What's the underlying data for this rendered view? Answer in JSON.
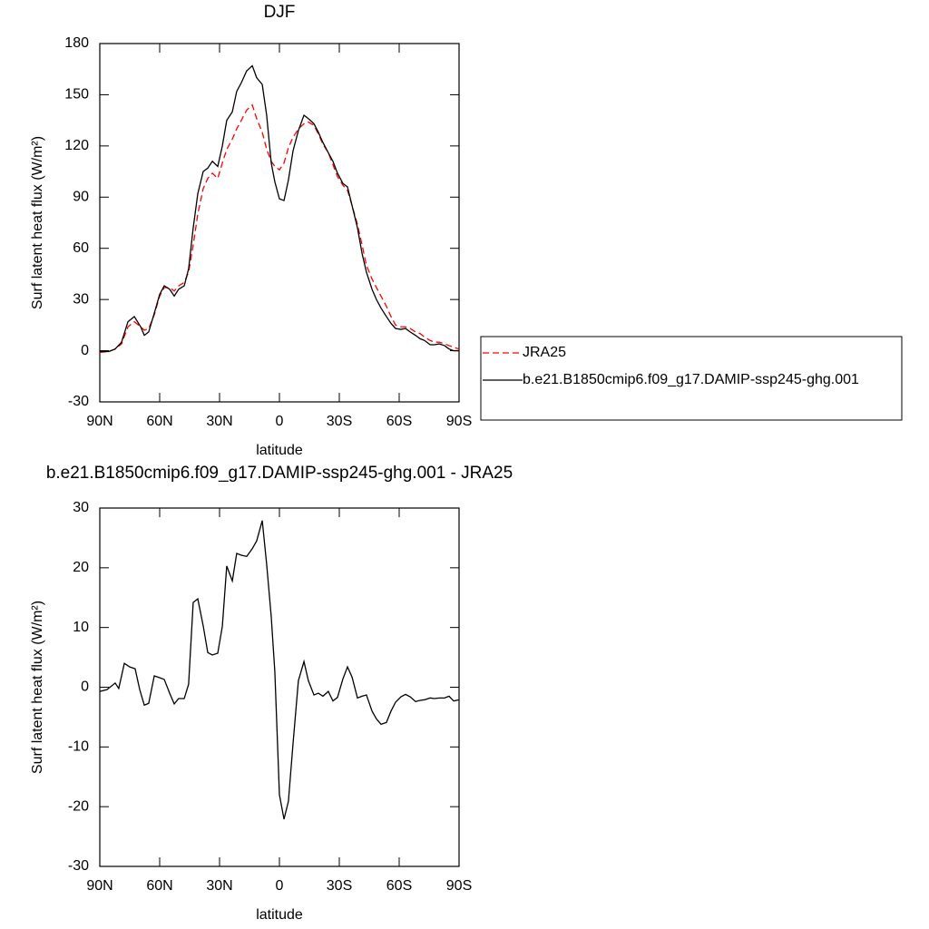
{
  "chart_data": [
    {
      "type": "line",
      "title": "DJF",
      "xlabel": "latitude",
      "ylabel": "Surf latent heat flux (W/m²)",
      "x": [
        90,
        85.5,
        82.3,
        79.1,
        75.9,
        72.7,
        69.5,
        67.7,
        65.5,
        62.7,
        60,
        57.7,
        55,
        52.7,
        50.5,
        47.7,
        45.5,
        43.2,
        40.9,
        38.2,
        35.9,
        33.6,
        30.9,
        28.6,
        26.4,
        23.6,
        21.4,
        19.1,
        16.4,
        13.6,
        11.4,
        8.6,
        6.4,
        4.1,
        2.3,
        0,
        -2.3,
        -4.5,
        -6.8,
        -9.5,
        -12.3,
        -14.5,
        -17.3,
        -19.5,
        -21.8,
        -24.5,
        -26.8,
        -29.1,
        -31.8,
        -34.1,
        -36.4,
        -39.1,
        -41.4,
        -43.6,
        -46.4,
        -48.6,
        -50.9,
        -53.6,
        -55.9,
        -58.2,
        -60.9,
        -63.2,
        -65.5,
        -68.2,
        -70.5,
        -72.7,
        -75.5,
        -77.7,
        -80,
        -82.7,
        -85,
        -87.3,
        -90
      ],
      "xlim": [
        90,
        -90
      ],
      "xticks": [
        {
          "value": 90,
          "label": "90N"
        },
        {
          "value": 60,
          "label": "60N"
        },
        {
          "value": 30,
          "label": "30N"
        },
        0,
        {
          "value": -30,
          "label": "30S"
        },
        {
          "value": -60,
          "label": "60S"
        },
        {
          "value": -90,
          "label": "90S"
        }
      ],
      "ylim": [
        -30,
        180
      ],
      "yticks": [
        -30,
        0,
        30,
        60,
        90,
        120,
        150,
        180
      ],
      "series": [
        {
          "name": "JRA25",
          "color": "#ff0000",
          "dash": "dashed",
          "values": [
            -1,
            -0.5,
            1,
            4,
            14,
            17,
            14,
            12,
            13,
            21,
            32,
            37,
            37,
            35,
            38,
            40,
            46,
            62,
            80,
            95,
            101,
            104,
            101,
            110,
            118,
            124,
            130,
            135,
            141,
            144,
            136,
            128,
            118,
            111,
            108,
            106,
            110,
            119,
            125,
            130,
            133,
            134,
            132,
            127,
            121,
            116,
            109,
            102,
            97,
            94,
            85,
            74,
            62,
            50,
            42,
            37,
            32,
            26,
            20,
            15,
            14,
            14,
            13,
            11,
            10,
            8,
            6,
            5,
            5,
            4,
            3,
            2,
            1
          ]
        },
        {
          "name": "b.e21.B1850cmip6.f09_g17.DAMIP-ssp245-ghg.001",
          "color": "#000000",
          "values": [
            -0.5,
            -0.5,
            1,
            5,
            17,
            20,
            14,
            9,
            11,
            22,
            33,
            38,
            36,
            32,
            36,
            38,
            48,
            72,
            92,
            105,
            107,
            111,
            108,
            120,
            135,
            140,
            152,
            157,
            164,
            167,
            160,
            156,
            138,
            110,
            99,
            89,
            88,
            100,
            117,
            129,
            138,
            136,
            133,
            128,
            122,
            116,
            111,
            104,
            98,
            96,
            85,
            72,
            57,
            46,
            36,
            30,
            25,
            20,
            16,
            13,
            12.5,
            13,
            11,
            9,
            7,
            6,
            3.5,
            3.5,
            4,
            3,
            1,
            0,
            0
          ]
        }
      ]
    },
    {
      "type": "line",
      "title": "b.e21.B1850cmip6.f09_g17.DAMIP-ssp245-ghg.001 - JRA25",
      "xlabel": "latitude",
      "ylabel": "Surf latent heat flux (W/m²)",
      "x": [
        90,
        86.4,
        82.3,
        80.5,
        77.7,
        75,
        72.3,
        70,
        67.7,
        65.5,
        62.7,
        60,
        57.7,
        55,
        52.7,
        50.5,
        47.7,
        45.5,
        43.2,
        40.9,
        38.2,
        35.9,
        33.6,
        30.9,
        28.6,
        26.4,
        23.6,
        21.4,
        19.1,
        16.4,
        13.6,
        11.4,
        8.6,
        6.4,
        4.1,
        2.3,
        0,
        -2.3,
        -4.5,
        -6.8,
        -9.5,
        -12.3,
        -14.5,
        -17.3,
        -19.5,
        -21.8,
        -24.5,
        -26.8,
        -29.1,
        -31.8,
        -34.1,
        -36.4,
        -39.1,
        -41.4,
        -43.6,
        -46.4,
        -48.6,
        -50.9,
        -53.6,
        -55.9,
        -58.2,
        -60.9,
        -63.2,
        -65.5,
        -68.2,
        -70.5,
        -72.7,
        -75.5,
        -77.7,
        -80,
        -82.7,
        -85,
        -87.3,
        -90
      ],
      "xlim": [
        90,
        -90
      ],
      "xticks": [
        {
          "value": 90,
          "label": "90N"
        },
        {
          "value": 60,
          "label": "60N"
        },
        {
          "value": 30,
          "label": "30N"
        },
        0,
        {
          "value": -30,
          "label": "30S"
        },
        {
          "value": -60,
          "label": "60S"
        },
        {
          "value": -90,
          "label": "90S"
        }
      ],
      "ylim": [
        -30,
        30
      ],
      "yticks": [
        -30,
        -20,
        -10,
        0,
        10,
        20,
        30
      ],
      "series": [
        {
          "color": "#000000",
          "values": [
            -0.7,
            -0.4,
            0.7,
            -0.2,
            4,
            3.4,
            3.1,
            -0.4,
            -3,
            -2.7,
            1.9,
            1.6,
            1.3,
            -1,
            -2.8,
            -1.9,
            -1.9,
            0.5,
            14.2,
            14.8,
            10.3,
            5.8,
            5.4,
            5.7,
            10.2,
            20.3,
            17.8,
            22.4,
            22.1,
            21.9,
            23.2,
            24.5,
            27.9,
            20.6,
            11.8,
            2.6,
            -18,
            -22.1,
            -19.1,
            -9.5,
            1.1,
            4.3,
            1.1,
            -1.3,
            -1,
            -1.5,
            -0.7,
            -2.3,
            -1.7,
            1.4,
            3.4,
            1.7,
            -1.8,
            -1.5,
            -1.3,
            -4,
            -5.3,
            -6.2,
            -5.9,
            -4,
            -2.5,
            -1.6,
            -1.2,
            -1.6,
            -2.4,
            -2.2,
            -2.1,
            -1.8,
            -1.9,
            -1.8,
            -1.8,
            -1.5,
            -2.3,
            -2.1
          ]
        }
      ]
    }
  ]
}
